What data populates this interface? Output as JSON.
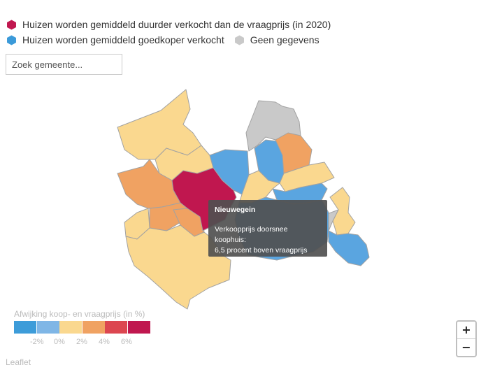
{
  "legend": {
    "items": [
      {
        "label": "Huizen worden gemiddeld duurder verkocht dan de vraagprijs (in 2020)",
        "color": "#c0174f"
      },
      {
        "label": "Huizen worden gemiddeld goedkoper verkocht",
        "color": "#3b9ad9"
      },
      {
        "label": "Geen gegevens",
        "color": "#c9c9c9"
      }
    ]
  },
  "search": {
    "placeholder": "Zoek gemeente..."
  },
  "tooltip": {
    "title": "Nieuwegein",
    "line1": "Verkoopprijs doorsnee koophuis:",
    "line2": "6,5 procent boven vraagprijs"
  },
  "color_legend": {
    "title": "Afwijking koop- en vraagprijs (in %)",
    "colors": [
      "#3d9cd9",
      "#7fb6e6",
      "#fad88f",
      "#f0a262",
      "#dc4650",
      "#c0174f"
    ],
    "ticks": [
      "-2%",
      "0%",
      "2%",
      "4%",
      "6%"
    ]
  },
  "zoom": {
    "in_label": "+",
    "out_label": "−"
  },
  "attribution": "Leaflet",
  "map_colors": {
    "yellow": "#fad88f",
    "orange": "#f0a262",
    "crimson": "#c0174f",
    "blue": "#5aa5e0",
    "gray": "#c9c9c9",
    "border": "#a2a2a2"
  }
}
